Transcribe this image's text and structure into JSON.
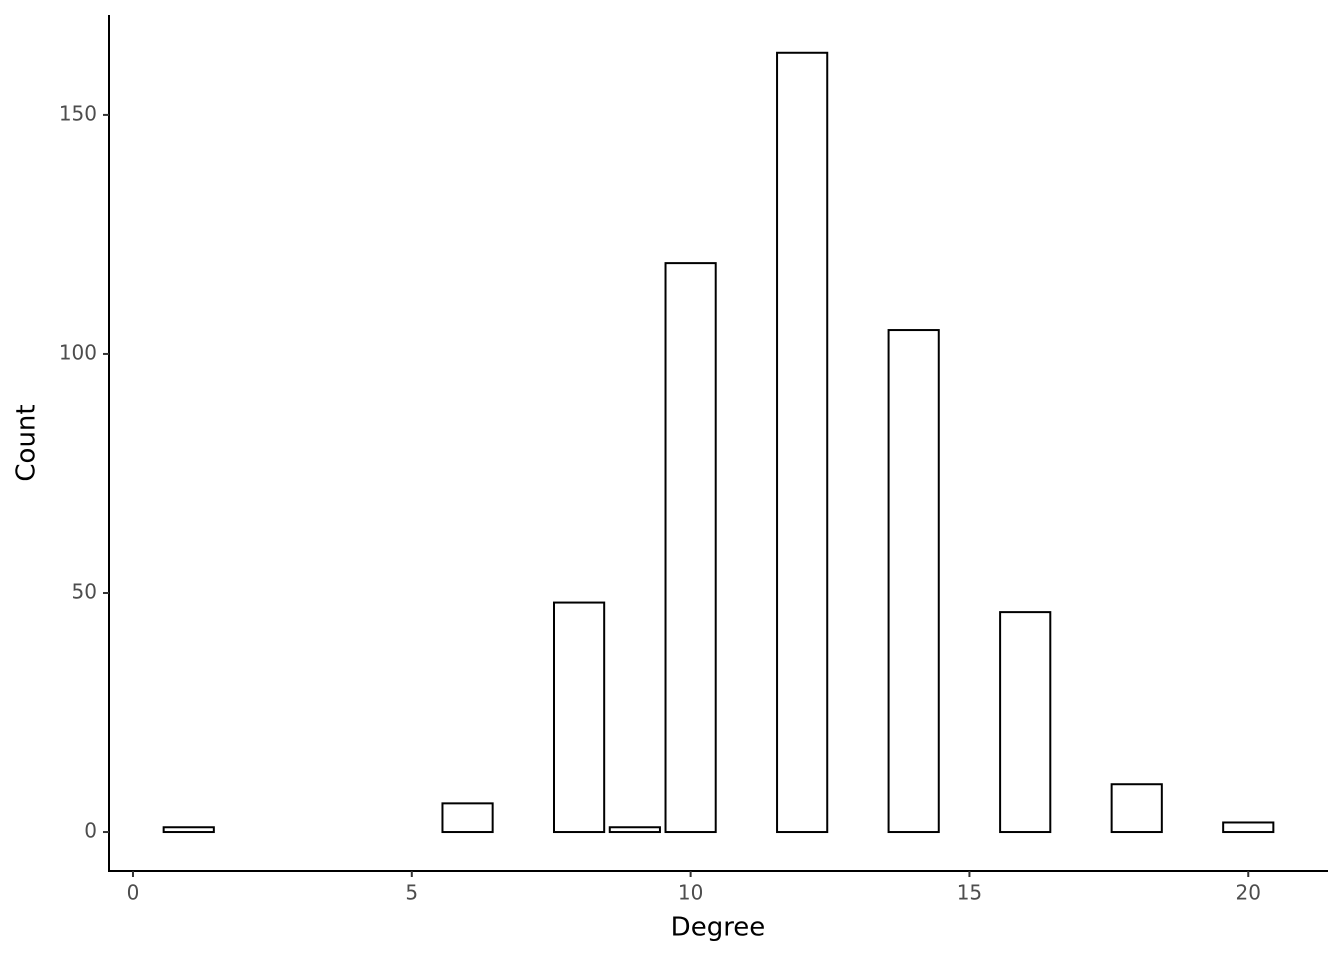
{
  "chart_data": {
    "type": "bar",
    "x_label": "Degree",
    "y_label": "Count",
    "x": [
      1,
      6,
      8,
      9,
      10,
      12,
      14,
      16,
      18,
      20
    ],
    "values": [
      1,
      6,
      48,
      1,
      119,
      163,
      105,
      46,
      10,
      2
    ],
    "color": "#ffffff",
    "edge_color": "#000000",
    "xlim": [
      -0.43,
      21.43
    ],
    "ylim": [
      -8.15,
      170.9
    ],
    "xticks": [
      0,
      5,
      10,
      15,
      20
    ],
    "yticks": [
      0,
      50,
      100,
      150
    ],
    "grid": false
  }
}
